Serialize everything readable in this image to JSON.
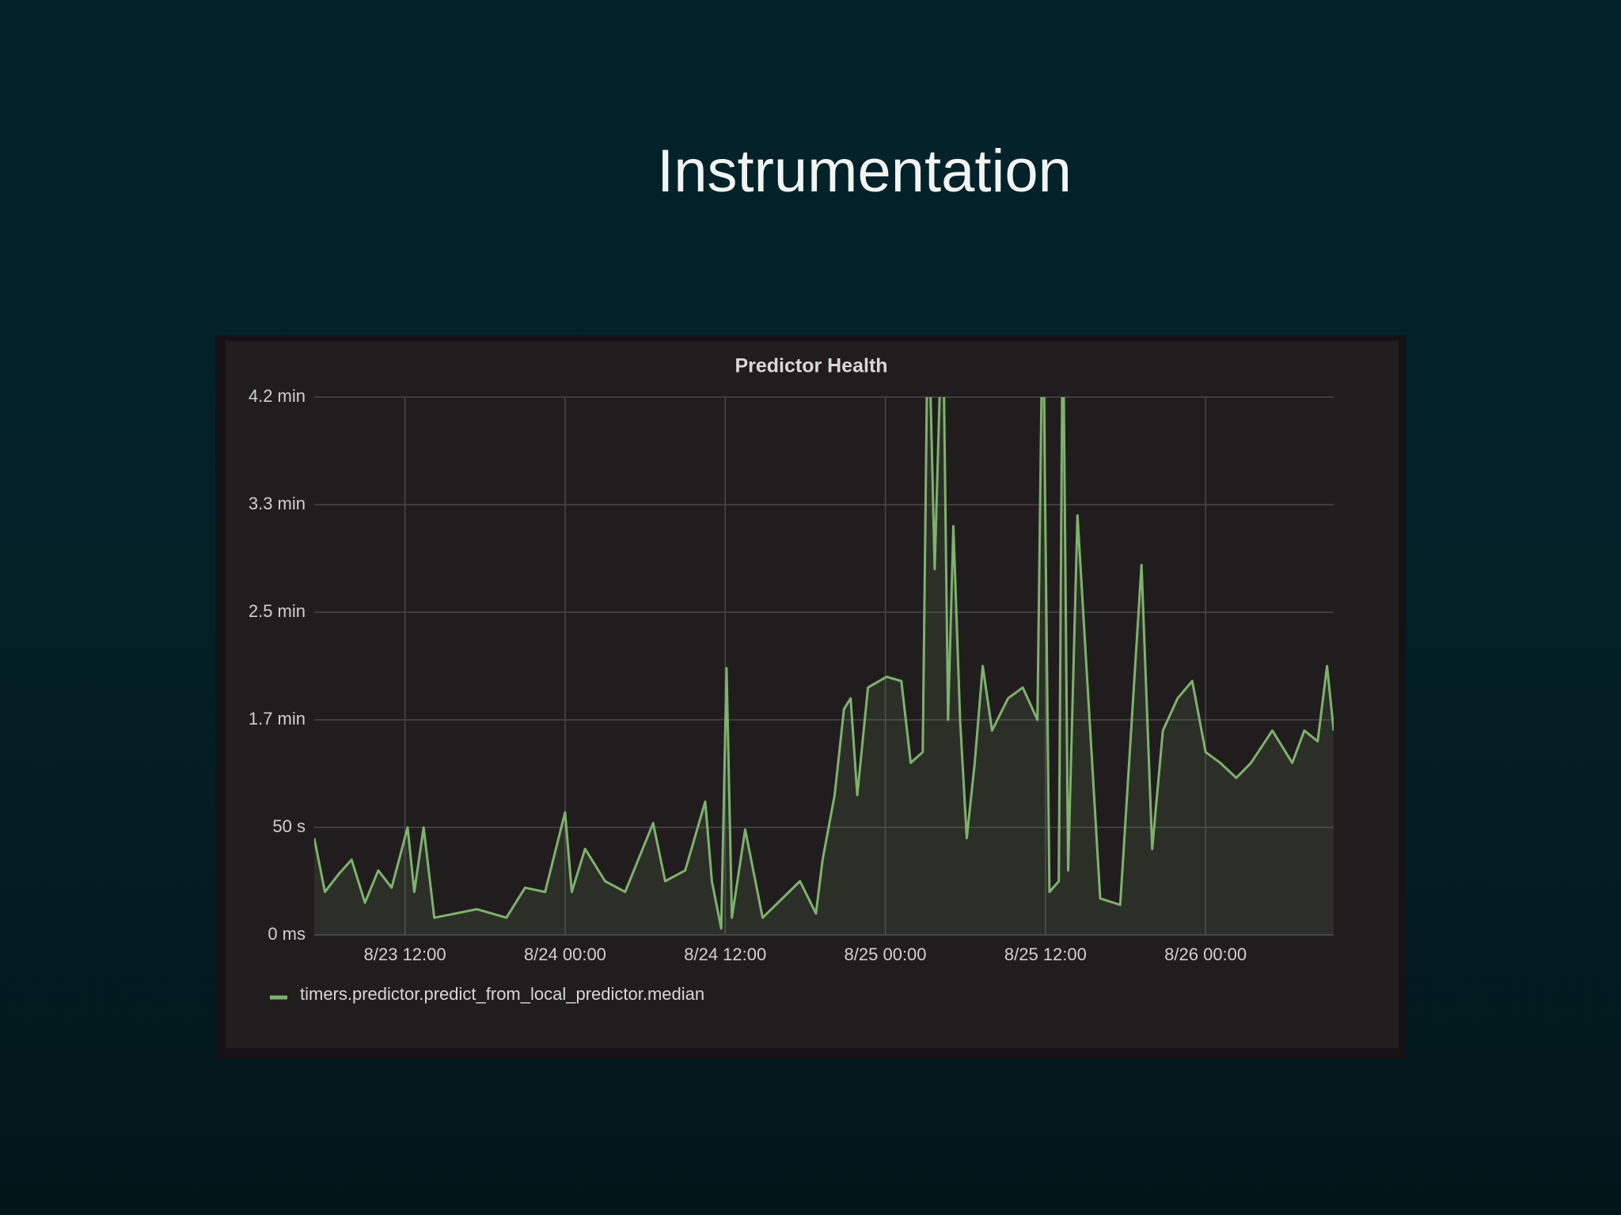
{
  "title": "Instrumentation",
  "chart_data": {
    "type": "line",
    "title": "Predictor Health",
    "x": [
      "8/23 05:12",
      "8/23 06:00",
      "8/23 07:00",
      "8/23 08:00",
      "8/23 09:00",
      "8/23 10:00",
      "8/23 11:00",
      "8/23 12:12",
      "8/23 12:42",
      "8/23 13:24",
      "8/23 14:12",
      "8/23 17:24",
      "8/23 19:36",
      "8/23 21:00",
      "8/23 22:30",
      "8/24 00:00",
      "8/24 00:30",
      "8/24 01:30",
      "8/24 03:00",
      "8/24 04:30",
      "8/24 06:36",
      "8/24 07:30",
      "8/24 09:00",
      "8/24 10:30",
      "8/24 11:00",
      "8/24 11:42",
      "8/24 12:06",
      "8/24 12:30",
      "8/24 13:30",
      "8/24 14:48",
      "8/24 17:36",
      "8/24 18:48",
      "8/24 19:18",
      "8/24 20:12",
      "8/24 20:54",
      "8/24 21:24",
      "8/24 21:54",
      "8/24 22:42",
      "8/25 00:06",
      "8/25 01:12",
      "8/25 01:54",
      "8/25 02:48",
      "8/25 03:12",
      "8/25 03:42",
      "8/25 04:18",
      "8/25 04:42",
      "8/25 05:06",
      "8/25 05:36",
      "8/25 06:06",
      "8/25 06:42",
      "8/25 07:18",
      "8/25 08:00",
      "8/25 09:12",
      "8/25 10:18",
      "8/25 11:24",
      "8/25 11:48",
      "8/25 12:18",
      "8/25 13:00",
      "8/25 13:18",
      "8/25 13:42",
      "8/25 14:24",
      "8/25 16:06",
      "8/25 17:36",
      "8/25 19:12",
      "8/25 20:00",
      "8/25 20:48",
      "8/25 21:54",
      "8/25 23:00",
      "8/26 00:00",
      "8/26 01:06",
      "8/26 02:18",
      "8/26 03:24",
      "8/26 05:00",
      "8/26 06:30",
      "8/26 07:24",
      "8/26 08:24",
      "8/26 09:06",
      "8/26 09:36"
    ],
    "series": [
      {
        "name": "timers.predictor.predict_from_local_predictor.median",
        "color": "#7eb26d",
        "values": [
          45,
          20,
          28,
          35,
          15,
          30,
          22,
          50,
          20,
          50,
          8,
          12,
          8,
          22,
          20,
          57,
          20,
          40,
          25,
          20,
          52,
          25,
          30,
          62,
          25,
          3,
          124,
          8,
          49,
          8,
          25,
          10,
          35,
          65,
          105,
          110,
          65,
          115,
          120,
          118,
          80,
          85,
          300,
          170,
          300,
          100,
          190,
          100,
          45,
          80,
          125,
          95,
          110,
          115,
          100,
          300,
          20,
          25,
          300,
          30,
          195,
          17,
          14,
          172,
          40,
          95,
          110,
          118,
          85,
          80,
          73,
          80,
          95,
          80,
          95,
          90,
          125,
          95
        ]
      }
    ],
    "xlim": [
      "8/23 05:12",
      "8/26 09:36"
    ],
    "xticks": [
      "8/23 12:00",
      "8/24 00:00",
      "8/24 12:00",
      "8/25 00:00",
      "8/25 12:00",
      "8/26 00:00"
    ],
    "ylim": [
      0,
      250
    ],
    "yticks": [
      {
        "value": 0,
        "label": "0 ms"
      },
      {
        "value": 50,
        "label": "50 s"
      },
      {
        "value": 100,
        "label": "1.7 min"
      },
      {
        "value": 150,
        "label": "2.5 min"
      },
      {
        "value": 200,
        "label": "3.3 min"
      },
      {
        "value": 250,
        "label": "4.2 min"
      }
    ],
    "grid": true
  }
}
